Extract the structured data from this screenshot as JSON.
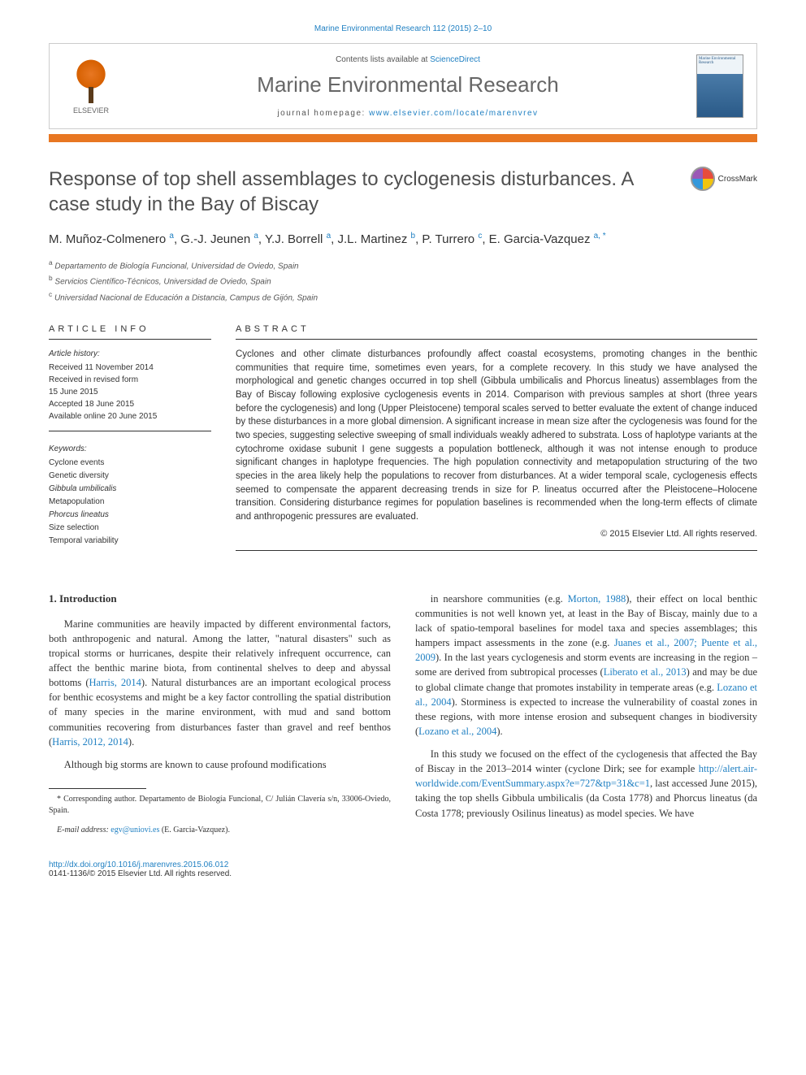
{
  "top_citation": "Marine Environmental Research 112 (2015) 2–10",
  "header": {
    "contents_prefix": "Contents lists available at ",
    "contents_link": "ScienceDirect",
    "journal": "Marine Environmental Research",
    "homepage_label": "journal homepage: ",
    "homepage_url": "www.elsevier.com/locate/marenvrev",
    "publisher": "ELSEVIER"
  },
  "title": "Response of top shell assemblages to cyclogenesis disturbances. A case study in the Bay of Biscay",
  "crossmark_label": "CrossMark",
  "authors_html": "M. Muñoz-Colmenero <sup>a</sup>, G.-J. Jeunen <sup>a</sup>, Y.J. Borrell <sup>a</sup>, J.L. Martinez <sup>b</sup>, P. Turrero <sup>c</sup>, E. Garcia-Vazquez <sup>a, *</sup>",
  "affiliations": [
    "a Departamento de Biología Funcional, Universidad de Oviedo, Spain",
    "b Servicios Científico-Técnicos, Universidad de Oviedo, Spain",
    "c Universidad Nacional de Educación a Distancia, Campus de Gijón, Spain"
  ],
  "info": {
    "heading": "ARTICLE INFO",
    "history_label": "Article history:",
    "history": [
      "Received 11 November 2014",
      "Received in revised form",
      "15 June 2015",
      "Accepted 18 June 2015",
      "Available online 20 June 2015"
    ],
    "keywords_label": "Keywords:",
    "keywords": [
      "Cyclone events",
      "Genetic diversity",
      "Gibbula umbilicalis",
      "Metapopulation",
      "Phorcus lineatus",
      "Size selection",
      "Temporal variability"
    ]
  },
  "abstract": {
    "heading": "ABSTRACT",
    "text": "Cyclones and other climate disturbances profoundly affect coastal ecosystems, promoting changes in the benthic communities that require time, sometimes even years, for a complete recovery. In this study we have analysed the morphological and genetic changes occurred in top shell (Gibbula umbilicalis and Phorcus lineatus) assemblages from the Bay of Biscay following explosive cyclogenesis events in 2014. Comparison with previous samples at short (three years before the cyclogenesis) and long (Upper Pleistocene) temporal scales served to better evaluate the extent of change induced by these disturbances in a more global dimension. A significant increase in mean size after the cyclogenesis was found for the two species, suggesting selective sweeping of small individuals weakly adhered to substrata. Loss of haplotype variants at the cytochrome oxidase subunit I gene suggests a population bottleneck, although it was not intense enough to produce significant changes in haplotype frequencies. The high population connectivity and metapopulation structuring of the two species in the area likely help the populations to recover from disturbances. At a wider temporal scale, cyclogenesis effects seemed to compensate the apparent decreasing trends in size for P. lineatus occurred after the Pleistocene–Holocene transition. Considering disturbance regimes for population baselines is recommended when the long-term effects of climate and anthropogenic pressures are evaluated.",
    "copyright": "© 2015 Elsevier Ltd. All rights reserved."
  },
  "body": {
    "intro_heading": "1. Introduction",
    "col1_p1": "Marine communities are heavily impacted by different environmental factors, both anthropogenic and natural. Among the latter, \"natural disasters\" such as tropical storms or hurricanes, despite their relatively infrequent occurrence, can affect the benthic marine biota, from continental shelves to deep and abyssal bottoms (Harris, 2014). Natural disturbances are an important ecological process for benthic ecosystems and might be a key factor controlling the spatial distribution of many species in the marine environment, with mud and sand bottom communities recovering from disturbances faster than gravel and reef benthos (Harris, 2012, 2014).",
    "col1_p2": "Although big storms are known to cause profound modifications",
    "col2_p1": "in nearshore communities (e.g. Morton, 1988), their effect on local benthic communities is not well known yet, at least in the Bay of Biscay, mainly due to a lack of spatio-temporal baselines for model taxa and species assemblages; this hampers impact assessments in the zone (e.g. Juanes et al., 2007; Puente et al., 2009). In the last years cyclogenesis and storm events are increasing in the region – some are derived from subtropical processes (Liberato et al., 2013) and may be due to global climate change that promotes instability in temperate areas (e.g. Lozano et al., 2004). Storminess is expected to increase the vulnerability of coastal zones in these regions, with more intense erosion and subsequent changes in biodiversity (Lozano et al., 2004).",
    "col2_p2": "In this study we focused on the effect of the cyclogenesis that affected the Bay of Biscay in the 2013–2014 winter (cyclone Dirk; see for example http://alert.air-worldwide.com/EventSummary.aspx?e=727&tp=31&c=1, last accessed June 2015), taking the top shells Gibbula umbilicalis (da Costa 1778) and Phorcus lineatus (da Costa 1778; previously Osilinus lineatus) as model species. We have"
  },
  "footnote": {
    "corr": "* Corresponding author. Departamento de Biología Funcional, C/ Julián Clavería s/n, 33006-Oviedo, Spain.",
    "email_label": "E-mail address: ",
    "email": "egv@uniovi.es",
    "email_name": " (E. Garcia-Vazquez)."
  },
  "footer": {
    "doi": "http://dx.doi.org/10.1016/j.marenvres.2015.06.012",
    "issn": "0141-1136/© 2015 Elsevier Ltd. All rights reserved."
  },
  "colors": {
    "accent": "#e87722",
    "link": "#1e7fc2",
    "heading": "#505050"
  }
}
